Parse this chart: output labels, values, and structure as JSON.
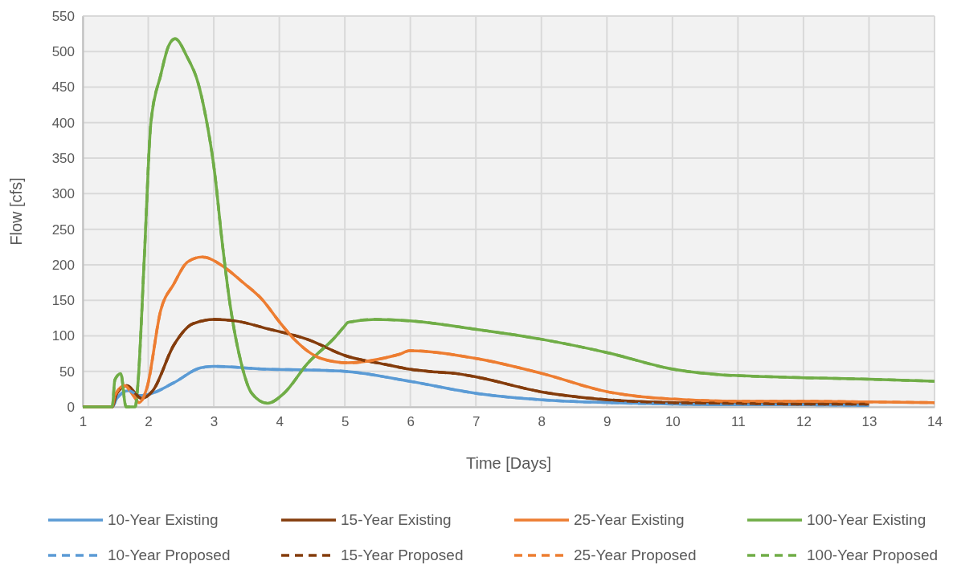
{
  "chart_data": {
    "type": "line",
    "xlabel": "Time [Days]",
    "ylabel": "Flow [cfs]",
    "xlim": [
      1,
      14
    ],
    "xticks": [
      1,
      2,
      3,
      4,
      5,
      6,
      7,
      8,
      9,
      10,
      11,
      12,
      13,
      14
    ],
    "ylim": [
      0,
      550
    ],
    "yticks": [
      0,
      50,
      100,
      150,
      200,
      250,
      300,
      350,
      400,
      450,
      500,
      550
    ],
    "grid": true,
    "legend": "bottom",
    "series": [
      {
        "name": "10-Year Existing",
        "color": "#5b9bd5",
        "line_style": "solid",
        "x": [
          1,
          1.45,
          1.52,
          1.7,
          1.86,
          1.98,
          2.39,
          2.8,
          3.01,
          3.82,
          4.43,
          5.01,
          5.99,
          7.01,
          8.01,
          9.02,
          10,
          11,
          12,
          13
        ],
        "values": [
          0,
          0,
          12,
          23,
          16,
          17,
          34,
          55,
          57,
          53,
          52,
          50,
          36,
          19,
          10,
          6,
          4,
          3,
          3,
          2
        ]
      },
      {
        "name": "15-Year Existing",
        "color": "#843c0c",
        "line_style": "solid",
        "x": [
          1,
          1.45,
          1.52,
          1.67,
          1.9,
          2.07,
          2.39,
          2.68,
          3.01,
          3.33,
          3.82,
          4.43,
          5.01,
          5.66,
          5.99,
          6.4,
          6.69,
          7.01,
          8.01,
          9.02,
          10.01,
          11,
          12,
          13
        ],
        "values": [
          0,
          0,
          19,
          30,
          12,
          23,
          87,
          117,
          123,
          121,
          110,
          95,
          72,
          59,
          53,
          49,
          47,
          42,
          21,
          10,
          6,
          5,
          4,
          4
        ]
      },
      {
        "name": "25-Year Existing",
        "color": "#ed7d31",
        "line_style": "solid",
        "x": [
          1,
          1.45,
          1.49,
          1.64,
          1.78,
          1.86,
          1.98,
          2.19,
          2.39,
          2.6,
          2.82,
          3.17,
          3.42,
          3.74,
          3.99,
          4.23,
          4.64,
          5.05,
          5.66,
          5.83,
          5.99,
          7.01,
          8.01,
          9.02,
          9.55,
          10.01,
          11,
          12,
          13,
          14
        ],
        "values": [
          0,
          0,
          16,
          30,
          15,
          6,
          27,
          136,
          173,
          204,
          211,
          196,
          177,
          151,
          121,
          95,
          68,
          62,
          70,
          74,
          79,
          68,
          47,
          21,
          14,
          11,
          8,
          8,
          7,
          6
        ]
      },
      {
        "name": "100-Year Existing",
        "color": "#70ad47",
        "line_style": "solid",
        "x": [
          1,
          1.45,
          1.49,
          1.58,
          1.66,
          1.8,
          1.84,
          1.94,
          2.04,
          2.19,
          2.31,
          2.41,
          2.59,
          2.76,
          2.88,
          3.01,
          3.13,
          3.25,
          3.42,
          3.58,
          3.82,
          4.07,
          4.43,
          4.85,
          4.99,
          5.05,
          5.46,
          5.99,
          7.01,
          8.01,
          9.02,
          10.01,
          10.77,
          11,
          12,
          13,
          14
        ],
        "values": [
          0,
          0,
          38,
          47,
          0,
          0,
          30,
          211,
          400,
          467,
          508,
          518,
          493,
          456,
          407,
          332,
          230,
          143,
          61,
          19,
          5,
          19,
          61,
          98,
          113,
          119,
          123,
          121,
          109,
          95,
          76,
          53,
          45,
          44,
          41,
          39,
          36
        ]
      },
      {
        "name": "10-Year Proposed",
        "color": "#5b9bd5",
        "line_style": "dashed",
        "x": [
          1,
          1.45,
          1.52,
          1.7,
          1.86,
          1.98,
          2.39,
          2.8,
          3.01,
          3.82,
          4.43,
          5.01,
          5.99,
          7.01,
          8.01,
          9.02,
          10,
          11,
          12,
          13
        ],
        "values": [
          0,
          0,
          12,
          23,
          16,
          17,
          34,
          55,
          57,
          53,
          52,
          50,
          36,
          19,
          10,
          6,
          4,
          3,
          3,
          2
        ]
      },
      {
        "name": "15-Year Proposed",
        "color": "#843c0c",
        "line_style": "dashed",
        "x": [
          1,
          1.45,
          1.52,
          1.67,
          1.9,
          2.07,
          2.39,
          2.68,
          3.01,
          3.33,
          3.82,
          4.43,
          5.01,
          5.66,
          5.99,
          6.4,
          6.69,
          7.01,
          8.01,
          9.02,
          10.01,
          11,
          12,
          13
        ],
        "values": [
          0,
          0,
          19,
          30,
          12,
          23,
          87,
          117,
          123,
          121,
          110,
          95,
          72,
          59,
          53,
          49,
          47,
          42,
          21,
          10,
          6,
          5,
          4,
          4
        ]
      },
      {
        "name": "25-Year Proposed",
        "color": "#ed7d31",
        "line_style": "dashed",
        "x": [
          1,
          1.45,
          1.49,
          1.64,
          1.78,
          1.86,
          1.98,
          2.19,
          2.39,
          2.6,
          2.82,
          3.17,
          3.42,
          3.74,
          3.99,
          4.23,
          4.64,
          5.05,
          5.66,
          5.83,
          5.99,
          7.01,
          8.01,
          9.02,
          9.55,
          10.01,
          11,
          12,
          13,
          14
        ],
        "values": [
          0,
          0,
          16,
          30,
          15,
          6,
          27,
          136,
          173,
          204,
          211,
          196,
          177,
          151,
          121,
          95,
          68,
          62,
          70,
          74,
          79,
          68,
          47,
          21,
          14,
          11,
          8,
          8,
          7,
          6
        ]
      },
      {
        "name": "100-Year Proposed",
        "color": "#70ad47",
        "line_style": "dashed",
        "x": [
          1,
          1.45,
          1.49,
          1.58,
          1.66,
          1.8,
          1.84,
          1.94,
          2.04,
          2.19,
          2.31,
          2.41,
          2.59,
          2.76,
          2.88,
          3.01,
          3.13,
          3.25,
          3.42,
          3.58,
          3.82,
          4.07,
          4.43,
          4.85,
          4.99,
          5.05,
          5.46,
          5.99,
          7.01,
          8.01,
          9.02,
          10.01,
          10.77,
          11,
          12,
          13,
          14
        ],
        "values": [
          0,
          0,
          38,
          47,
          0,
          0,
          30,
          211,
          400,
          467,
          508,
          518,
          493,
          456,
          407,
          332,
          230,
          143,
          61,
          19,
          5,
          19,
          61,
          98,
          113,
          119,
          123,
          121,
          109,
          95,
          76,
          53,
          45,
          44,
          41,
          39,
          36
        ]
      }
    ]
  }
}
